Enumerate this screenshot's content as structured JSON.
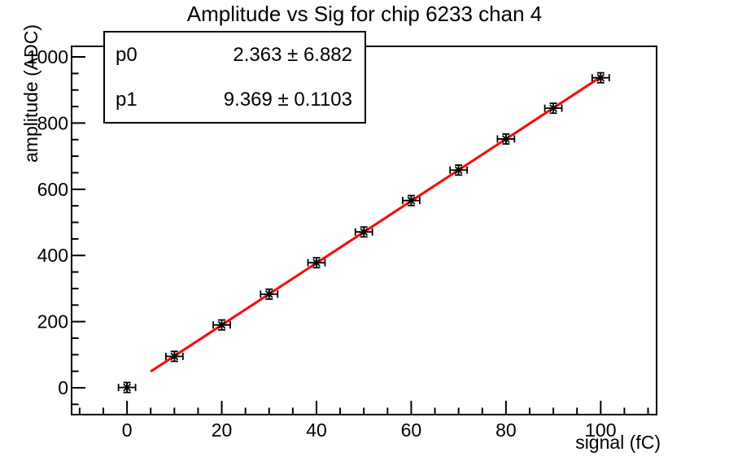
{
  "title": "Amplitude vs Sig for chip 6233 chan 4",
  "stats_box": {
    "rows": [
      {
        "name": "p0",
        "value": "2.363 ± 6.882"
      },
      {
        "name": "p1",
        "value": "9.369 ± 0.1103"
      }
    ]
  },
  "chart_data": {
    "type": "scatter",
    "title": "Amplitude vs Sig for chip 6233 chan 4",
    "xlabel": "signal (fC)",
    "ylabel": "amplitude (ADC)",
    "x": [
      0,
      10,
      20,
      30,
      40,
      50,
      60,
      70,
      80,
      90,
      100
    ],
    "y": [
      1,
      95,
      190,
      283,
      378,
      471,
      566,
      658,
      752,
      845,
      937
    ],
    "x_error": 1.8,
    "y_error": 15,
    "xlim": [
      -11.7,
      111.8
    ],
    "ylim": [
      -81,
      1032
    ],
    "x_major_ticks": [
      0,
      20,
      40,
      60,
      80,
      100
    ],
    "x_minor_step": 5,
    "y_major_ticks": [
      0,
      200,
      400,
      600,
      800,
      1000
    ],
    "y_minor_step": 50,
    "grid": false,
    "legend": null,
    "fit": {
      "type": "linear",
      "p0": 2.363,
      "p0_err": 6.882,
      "p1": 9.369,
      "p1_err": 0.1103,
      "x_range": [
        5,
        100
      ]
    },
    "colors": {
      "fit_line": "#ff0000",
      "marker": "#000000",
      "axis": "#000000",
      "background": "#ffffff"
    }
  }
}
